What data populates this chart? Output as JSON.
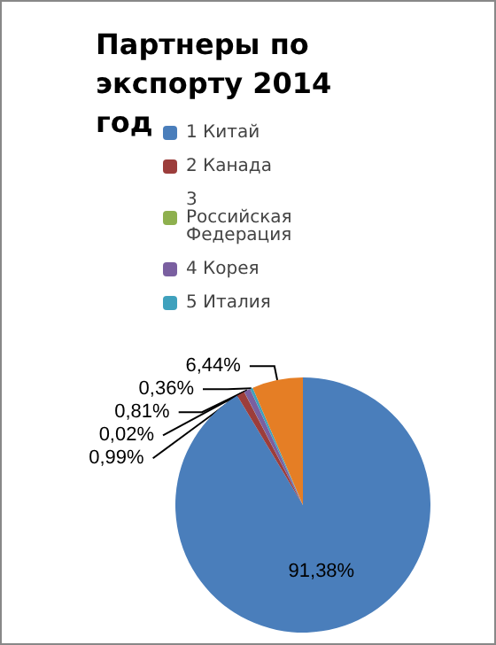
{
  "chart_data": {
    "type": "pie",
    "title": "Партнеры по экспорту 2014 год",
    "categories": [
      "1 Китай",
      "2 Канада",
      "3 Российская Федерация",
      "4 Корея",
      "5 Италия",
      null
    ],
    "values": [
      91.38,
      0.99,
      0.02,
      0.81,
      0.36,
      6.44
    ],
    "value_labels": [
      "91,38%",
      "0,99%",
      "0,02%",
      "0,81%",
      "0,36%",
      "6,44%"
    ],
    "colors": [
      "#4a7ebb",
      "#9c3d3b",
      "#8eb04e",
      "#7a5fa0",
      "#3fa1bd",
      "#e57e25"
    ],
    "legend": "top"
  }
}
